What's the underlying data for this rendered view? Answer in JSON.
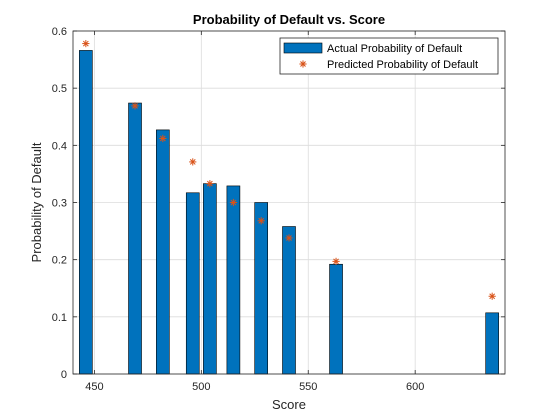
{
  "chart_data": {
    "type": "bar",
    "title": "Probability of Default vs. Score",
    "xlabel": "Score",
    "ylabel": "Probability of Default",
    "xlim": [
      440,
      642
    ],
    "ylim": [
      0,
      0.6
    ],
    "xticks": [
      450,
      500,
      550,
      600
    ],
    "yticks": [
      0,
      0.1,
      0.2,
      0.3,
      0.4,
      0.5,
      0.6
    ],
    "grid": true,
    "legend_position": "top-right",
    "series": [
      {
        "name": "Actual Probability of Default",
        "kind": "bar",
        "color": "#0072BD",
        "x": [
          446,
          469,
          482,
          496,
          504,
          515,
          528,
          541,
          563,
          636
        ],
        "values": [
          0.566,
          0.474,
          0.427,
          0.317,
          0.333,
          0.329,
          0.3,
          0.258,
          0.192,
          0.107
        ]
      },
      {
        "name": "Predicted Probability of Default",
        "kind": "marker",
        "marker": "*",
        "color": "#D95319",
        "x": [
          446,
          469,
          482,
          496,
          504,
          515,
          528,
          541,
          563,
          636
        ],
        "values": [
          0.578,
          0.469,
          0.412,
          0.371,
          0.333,
          0.3,
          0.268,
          0.238,
          0.197,
          0.136
        ]
      }
    ]
  }
}
